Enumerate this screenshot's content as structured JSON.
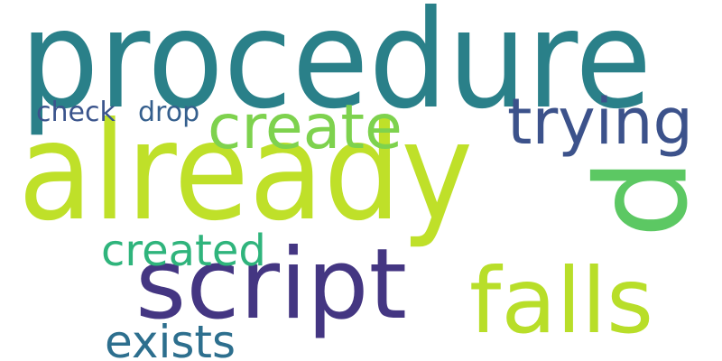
{
  "words": [
    {
      "text": "procedure",
      "color": "#2a8089"
    },
    {
      "text": "already",
      "color": "#bfe029"
    },
    {
      "text": "script",
      "color": "#443682"
    },
    {
      "text": "falls",
      "color": "#b8de29"
    },
    {
      "text": "trying",
      "color": "#3c528b"
    },
    {
      "text": "create",
      "color": "#7ed24e"
    },
    {
      "text": "p",
      "color": "#5cc863"
    },
    {
      "text": "created",
      "color": "#2fb47c"
    },
    {
      "text": "exists",
      "color": "#2d6f8e"
    },
    {
      "text": "check",
      "color": "#3a548c"
    },
    {
      "text": "drop",
      "color": "#355f8d"
    }
  ]
}
